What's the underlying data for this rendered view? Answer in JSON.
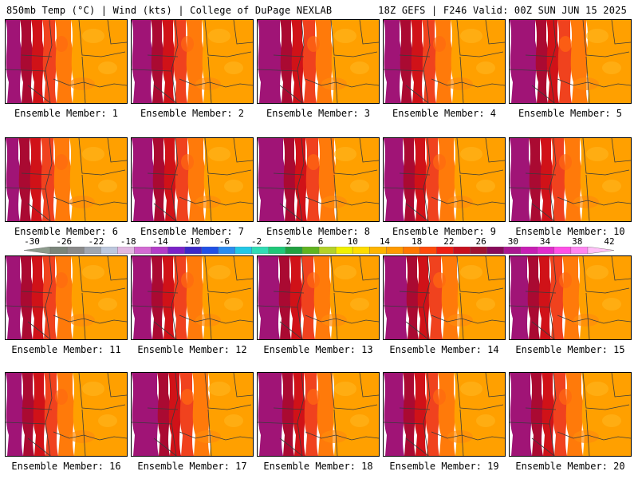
{
  "header": {
    "left": "850mb Temp (°C) | Wind (kts) | College of DuPage NEXLAB",
    "right": "18Z GEFS | F246 Valid: 00Z SUN JUN 15 2025"
  },
  "colorbar": {
    "labels": [
      "-30",
      "-26",
      "-22",
      "-18",
      "-14",
      "-10",
      "-6",
      "-2",
      "2",
      "6",
      "10",
      "14",
      "18",
      "22",
      "26",
      "30",
      "34",
      "38",
      "42"
    ],
    "colors": [
      "#8c9b8c",
      "#7a857a",
      "#8a8a8a",
      "#a0a6b0",
      "#bcc8de",
      "#e1b8e1",
      "#d36ad3",
      "#b43cc8",
      "#7b22c8",
      "#3c28c8",
      "#2050e6",
      "#2a8cf0",
      "#22c8e6",
      "#30dcb4",
      "#1ec878",
      "#20a040",
      "#60b420",
      "#b4d228",
      "#f0f000",
      "#ffdc00",
      "#ffb400",
      "#ff9a00",
      "#ff7800",
      "#ff4a0a",
      "#ee1e14",
      "#c8101e",
      "#a01432",
      "#880a5a",
      "#aa1890",
      "#c81eb4",
      "#e12ccc",
      "#ff50e6",
      "#ff86f0",
      "#ffc0f8"
    ]
  },
  "members": [
    {
      "label": "Ensemble Member: 1"
    },
    {
      "label": "Ensemble Member: 2"
    },
    {
      "label": "Ensemble Member: 3"
    },
    {
      "label": "Ensemble Member: 4"
    },
    {
      "label": "Ensemble Member: 5"
    },
    {
      "label": "Ensemble Member: 6"
    },
    {
      "label": "Ensemble Member: 7"
    },
    {
      "label": "Ensemble Member: 8"
    },
    {
      "label": "Ensemble Member: 9"
    },
    {
      "label": "Ensemble Member: 10"
    },
    {
      "label": "Ensemble Member: 11"
    },
    {
      "label": "Ensemble Member: 12"
    },
    {
      "label": "Ensemble Member: 13"
    },
    {
      "label": "Ensemble Member: 14"
    },
    {
      "label": "Ensemble Member: 15"
    },
    {
      "label": "Ensemble Member: 16"
    },
    {
      "label": "Ensemble Member: 17"
    },
    {
      "label": "Ensemble Member: 18"
    },
    {
      "label": "Ensemble Member: 19"
    },
    {
      "label": "Ensemble Member: 20"
    }
  ]
}
